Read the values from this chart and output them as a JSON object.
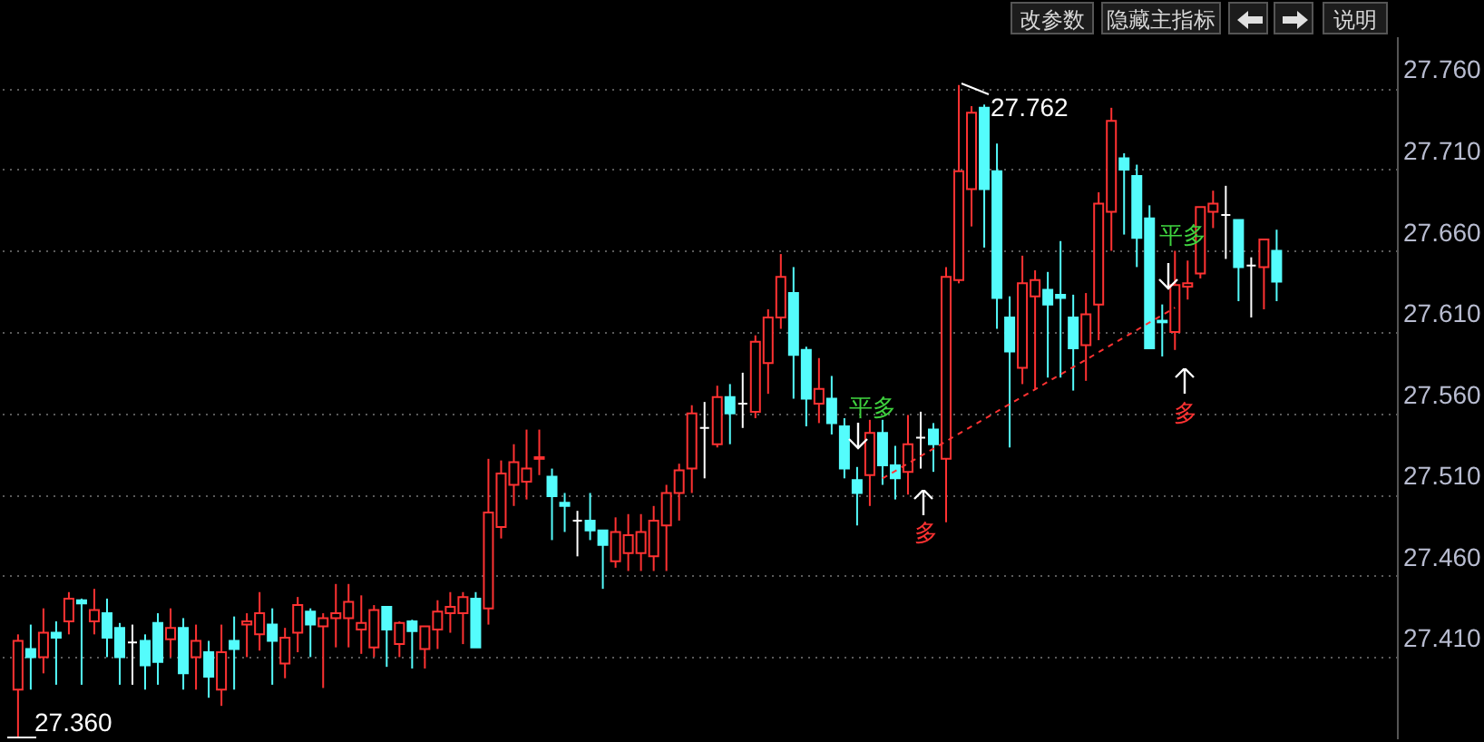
{
  "chart_data": {
    "type": "candlestick",
    "tick_labels": "y",
    "grid": "y",
    "ylim": [
      27.36,
      27.792
    ],
    "yticks": [
      {
        "value": 27.41,
        "label": "27.410"
      },
      {
        "value": 27.46,
        "label": "27.460"
      },
      {
        "value": 27.51,
        "label": "27.510"
      },
      {
        "value": 27.56,
        "label": "27.560"
      },
      {
        "value": 27.61,
        "label": "27.610"
      },
      {
        "value": 27.66,
        "label": "27.660"
      },
      {
        "value": 27.71,
        "label": "27.710"
      },
      {
        "value": 27.76,
        "label": "27.760"
      }
    ],
    "categories": [
      null,
      null,
      null,
      null,
      null,
      null,
      null,
      null,
      null,
      null,
      null,
      null,
      null,
      null,
      null,
      null,
      null,
      null,
      null,
      null,
      null,
      null,
      null,
      null,
      null,
      null,
      null,
      null,
      null,
      null,
      null,
      null,
      null,
      null,
      null,
      null,
      null,
      null,
      null,
      null,
      null,
      null,
      null,
      null,
      null,
      null,
      null,
      null,
      null,
      null,
      null,
      null,
      null,
      null,
      null,
      null,
      null,
      null,
      null,
      null,
      null,
      null,
      null,
      null,
      null,
      null,
      null,
      null,
      null,
      null,
      null,
      null,
      null,
      null,
      null,
      null,
      null,
      null,
      null,
      null,
      null,
      null,
      null,
      null,
      null,
      null,
      null,
      null,
      null,
      null,
      null,
      null,
      null,
      null,
      null,
      null,
      null,
      null,
      null,
      null
    ],
    "ohlc": [
      [
        27.39,
        27.424,
        27.36,
        27.42
      ],
      [
        27.415,
        27.43,
        27.39,
        27.41
      ],
      [
        27.41,
        27.44,
        27.4,
        27.425
      ],
      [
        27.425,
        27.432,
        27.393,
        27.422
      ],
      [
        27.432,
        27.45,
        27.424,
        27.446
      ],
      [
        27.445,
        27.446,
        27.393,
        27.443
      ],
      [
        27.432,
        27.452,
        27.424,
        27.439
      ],
      [
        27.437,
        27.446,
        27.41,
        27.422
      ],
      [
        27.428,
        27.431,
        27.393,
        27.41
      ],
      [
        27.419,
        27.43,
        27.393,
        27.419
      ],
      [
        27.42,
        27.424,
        27.39,
        27.405
      ],
      [
        27.431,
        27.437,
        27.393,
        27.407
      ],
      [
        27.421,
        27.44,
        27.41,
        27.428
      ],
      [
        27.428,
        27.434,
        27.39,
        27.4
      ],
      [
        27.41,
        27.43,
        27.39,
        27.42
      ],
      [
        27.413,
        27.42,
        27.385,
        27.398
      ],
      [
        27.39,
        27.43,
        27.38,
        27.413
      ],
      [
        27.42,
        27.435,
        27.39,
        27.415
      ],
      [
        27.43,
        27.437,
        27.41,
        27.432
      ],
      [
        27.424,
        27.45,
        27.414,
        27.437
      ],
      [
        27.43,
        27.44,
        27.393,
        27.42
      ],
      [
        27.406,
        27.428,
        27.397,
        27.422
      ],
      [
        27.425,
        27.447,
        27.413,
        27.442
      ],
      [
        27.438,
        27.44,
        27.41,
        27.43
      ],
      [
        27.429,
        27.437,
        27.391,
        27.434
      ],
      [
        27.434,
        27.455,
        27.416,
        27.437
      ],
      [
        27.434,
        27.455,
        27.416,
        27.444
      ],
      [
        27.427,
        27.448,
        27.412,
        27.431
      ],
      [
        27.416,
        27.442,
        27.41,
        27.439
      ],
      [
        27.441,
        27.441,
        27.404,
        27.427
      ],
      [
        27.418,
        27.432,
        27.41,
        27.431
      ],
      [
        27.432,
        27.433,
        27.403,
        27.426
      ],
      [
        27.415,
        27.429,
        27.403,
        27.429
      ],
      [
        27.427,
        27.445,
        27.415,
        27.438
      ],
      [
        27.437,
        27.45,
        27.425,
        27.441
      ],
      [
        27.437,
        27.45,
        27.418,
        27.447
      ],
      [
        27.446,
        27.45,
        27.416,
        27.416
      ],
      [
        27.44,
        27.532,
        27.43,
        27.499
      ],
      [
        27.49,
        27.531,
        27.483,
        27.523
      ],
      [
        27.516,
        27.541,
        27.503,
        27.53
      ],
      [
        27.518,
        27.55,
        27.507,
        27.526
      ],
      [
        27.532,
        27.55,
        27.522,
        27.533
      ],
      [
        27.521,
        27.526,
        27.482,
        27.509
      ],
      [
        27.505,
        27.511,
        27.487,
        27.503
      ],
      [
        27.494,
        27.5,
        27.472,
        27.494
      ],
      [
        27.494,
        27.511,
        27.482,
        27.488
      ],
      [
        27.488,
        27.488,
        27.452,
        27.479
      ],
      [
        27.469,
        27.496,
        27.465,
        27.487
      ],
      [
        27.474,
        27.498,
        27.463,
        27.485
      ],
      [
        27.474,
        27.498,
        27.463,
        27.487
      ],
      [
        27.472,
        27.503,
        27.463,
        27.494
      ],
      [
        27.491,
        27.516,
        27.463,
        27.511
      ],
      [
        27.511,
        27.529,
        27.494,
        27.525
      ],
      [
        27.526,
        27.565,
        27.511,
        27.56
      ],
      [
        27.551,
        27.567,
        27.52,
        27.551
      ],
      [
        27.541,
        27.577,
        27.539,
        27.57
      ],
      [
        27.57,
        27.578,
        27.541,
        27.56
      ],
      [
        27.566,
        27.585,
        27.551,
        27.566
      ],
      [
        27.561,
        27.608,
        27.557,
        27.604
      ],
      [
        27.591,
        27.624,
        27.572,
        27.619
      ],
      [
        27.619,
        27.658,
        27.612,
        27.644
      ],
      [
        27.634,
        27.65,
        27.569,
        27.596
      ],
      [
        27.599,
        27.601,
        27.552,
        27.569
      ],
      [
        27.566,
        27.594,
        27.554,
        27.575
      ],
      [
        27.569,
        27.583,
        27.547,
        27.554
      ],
      [
        27.552,
        27.557,
        27.52,
        27.526
      ],
      [
        27.519,
        27.527,
        27.491,
        27.511
      ],
      [
        27.522,
        27.556,
        27.503,
        27.548
      ],
      [
        27.548,
        27.556,
        27.516,
        27.528
      ],
      [
        27.528,
        27.54,
        27.507,
        27.52
      ],
      [
        27.524,
        27.559,
        27.51,
        27.541
      ],
      [
        27.545,
        27.561,
        27.526,
        27.545
      ],
      [
        27.55,
        27.554,
        27.524,
        27.541
      ],
      [
        27.532,
        27.65,
        27.493,
        27.644
      ],
      [
        27.642,
        27.762,
        27.64,
        27.709
      ],
      [
        27.698,
        27.749,
        27.675,
        27.745
      ],
      [
        27.748,
        27.75,
        27.662,
        27.698
      ],
      [
        27.709,
        27.726,
        27.612,
        27.631
      ],
      [
        27.619,
        27.632,
        27.539,
        27.598
      ],
      [
        27.588,
        27.657,
        27.578,
        27.64
      ],
      [
        27.632,
        27.648,
        27.575,
        27.642
      ],
      [
        27.636,
        27.647,
        27.582,
        27.627
      ],
      [
        27.633,
        27.666,
        27.582,
        27.631
      ],
      [
        27.619,
        27.633,
        27.574,
        27.6
      ],
      [
        27.602,
        27.634,
        27.58,
        27.621
      ],
      [
        27.627,
        27.696,
        27.605,
        27.689
      ],
      [
        27.684,
        27.748,
        27.66,
        27.74
      ],
      [
        27.717,
        27.72,
        27.67,
        27.71
      ],
      [
        27.706,
        27.713,
        27.65,
        27.668
      ],
      [
        27.68,
        27.688,
        27.6,
        27.6
      ],
      [
        27.617,
        27.627,
        27.595,
        27.616
      ],
      [
        27.61,
        27.66,
        27.599,
        27.639
      ],
      [
        27.638,
        27.654,
        27.63,
        27.64
      ],
      [
        27.646,
        27.687,
        27.643,
        27.687
      ],
      [
        27.684,
        27.697,
        27.674,
        27.689
      ],
      [
        27.682,
        27.7,
        27.655,
        27.682
      ],
      [
        27.679,
        27.679,
        27.629,
        27.65
      ],
      [
        27.651,
        27.656,
        27.619,
        27.651
      ],
      [
        27.65,
        27.667,
        27.624,
        27.667
      ],
      [
        27.66,
        27.673,
        27.629,
        27.641
      ]
    ],
    "colors": [
      "#ff3232",
      "#54fcfc",
      "#ff3232",
      "#54fcfc",
      "#ff3232",
      "#54fcfc",
      "#ff3232",
      "#54fcfc",
      "#54fcfc",
      "#ffffff",
      "#54fcfc",
      "#54fcfc",
      "#ff3232",
      "#54fcfc",
      "#ff3232",
      "#54fcfc",
      "#ff3232",
      "#54fcfc",
      "#ff3232",
      "#ff3232",
      "#54fcfc",
      "#ff3232",
      "#ff3232",
      "#54fcfc",
      "#ff3232",
      "#ff3232",
      "#ff3232",
      "#ff3232",
      "#ff3232",
      "#54fcfc",
      "#ff3232",
      "#54fcfc",
      "#ff3232",
      "#ff3232",
      "#ff3232",
      "#ff3232",
      "#54fcfc",
      "#ff3232",
      "#ff3232",
      "#ff3232",
      "#ff3232",
      "#ff3232",
      "#54fcfc",
      "#54fcfc",
      "#ffffff",
      "#54fcfc",
      "#54fcfc",
      "#ff3232",
      "#ff3232",
      "#ff3232",
      "#ff3232",
      "#ff3232",
      "#ff3232",
      "#ff3232",
      "#ffffff",
      "#ff3232",
      "#54fcfc",
      "#ffffff",
      "#ff3232",
      "#ff3232",
      "#ff3232",
      "#54fcfc",
      "#54fcfc",
      "#ff3232",
      "#54fcfc",
      "#54fcfc",
      "#54fcfc",
      "#ff3232",
      "#54fcfc",
      "#54fcfc",
      "#ff3232",
      "#ffffff",
      "#54fcfc",
      "#ff3232",
      "#ff3232",
      "#ff3232",
      "#54fcfc",
      "#54fcfc",
      "#54fcfc",
      "#ff3232",
      "#ff3232",
      "#54fcfc",
      "#54fcfc",
      "#54fcfc",
      "#ff3232",
      "#ff3232",
      "#ff3232",
      "#54fcfc",
      "#54fcfc",
      "#54fcfc",
      "#54fcfc",
      "#ff3232",
      "#ff3232",
      "#ff3232",
      "#ff3232",
      "#ffffff",
      "#54fcfc",
      "#ffffff",
      "#ff3232",
      "#54fcfc"
    ],
    "series": [
      {
        "type": "line",
        "color": "#ff3232",
        "line_style": "dashed",
        "values": [
          null,
          null,
          null,
          null,
          null,
          null,
          null,
          null,
          null,
          null,
          null,
          null,
          null,
          null,
          null,
          null,
          null,
          null,
          null,
          null,
          null,
          null,
          null,
          null,
          null,
          null,
          null,
          null,
          null,
          null,
          null,
          null,
          null,
          null,
          null,
          null,
          null,
          null,
          null,
          null,
          null,
          null,
          null,
          null,
          null,
          null,
          null,
          null,
          null,
          null,
          null,
          null,
          null,
          null,
          null,
          null,
          null,
          null,
          null,
          null,
          null,
          null,
          null,
          null,
          null,
          null,
          null,
          null,
          27.52,
          null,
          null,
          null,
          null,
          null,
          null,
          null,
          null,
          null,
          null,
          null,
          null,
          null,
          null,
          null,
          null,
          null,
          null,
          null,
          null,
          null,
          null,
          27.625,
          null,
          null,
          null,
          null,
          null,
          null,
          null,
          null
        ]
      }
    ],
    "annotations": [
      "27.762",
      "27.360",
      "平多",
      "多",
      "平多",
      "多",
      "改参数",
      "隐藏主指标",
      "说明"
    ]
  }
}
